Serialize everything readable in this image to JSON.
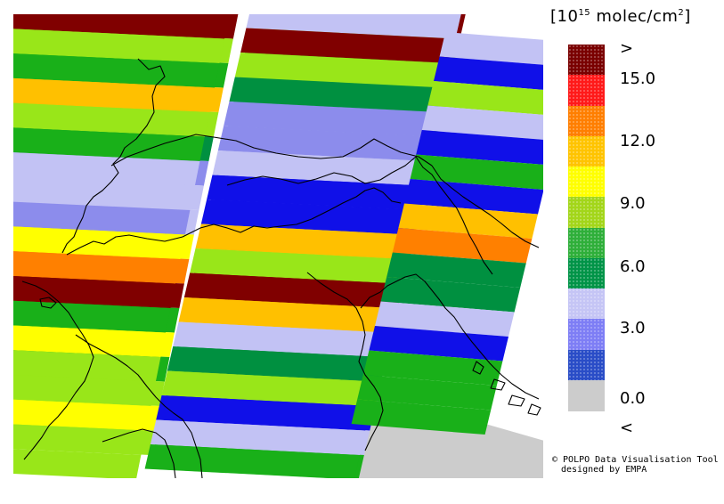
{
  "legend": {
    "title_prefix": "[10",
    "title_exponent": "15",
    "title_suffix": " molec/cm",
    "title_squared": "2",
    "title_close": "]",
    "colors": [
      "#7a0000",
      "#ff1a1a",
      "#ff7f00",
      "#ffc400",
      "#ffff00",
      "#a3d61a",
      "#2faf3a",
      "#009448",
      "#c5c5f5",
      "#7e7ef5",
      "#2a4dc7",
      "#cccccc"
    ],
    "labels": [
      ">",
      "15.0",
      "12.0",
      "9.0",
      "6.0",
      "3.0",
      "0.0",
      "<"
    ]
  },
  "credit": {
    "line1": "© POLPO Data Visualisation Tool",
    "line2": "designed by EMPA"
  },
  "map": {
    "palette": {
      "maroon": "#800000",
      "orange": "#ff8000",
      "amber": "#ffc000",
      "yellow": "#ffff00",
      "lime": "#99e619",
      "green": "#19b019",
      "dkgreen": "#009040",
      "ltblue": "#c2c2f4",
      "midblue": "#8c8cec",
      "blue": "#1010e8",
      "grey": "#cccccc"
    },
    "swaths": [
      [
        "maroon",
        "lime",
        "green",
        "amber",
        "lime",
        "dkgreen",
        "midblue",
        "ltblue",
        "ltblue",
        "yellow",
        "orange",
        "maroon",
        "green",
        "yellow",
        "green",
        "lime",
        "yellow",
        "lime"
      ],
      [
        "maroon",
        "lime",
        "green",
        "amber",
        "lime",
        "green",
        "ltblue",
        "ltblue",
        "midblue",
        "yellow",
        "orange",
        "maroon",
        "green",
        "yellow",
        "lime",
        "lime",
        "yellow",
        "lime",
        "lime"
      ],
      [
        "maroon",
        "lime",
        "green",
        "lime",
        "dkgreen",
        "midblue",
        "ltblue",
        "blue",
        "blue",
        "amber",
        "lime",
        "maroon",
        "amber",
        "ltblue",
        "dkgreen",
        "lime",
        "blue",
        "ltblue",
        "green"
      ],
      [
        "ltblue",
        "maroon",
        "lime",
        "dkgreen",
        "midblue",
        "midblue",
        "ltblue",
        "blue",
        "blue",
        "amber",
        "lime",
        "maroon",
        "amber",
        "ltblue",
        "dkgreen",
        "lime",
        "blue",
        "ltblue",
        "green"
      ],
      [
        "ltblue",
        "blue",
        "lime",
        "ltblue",
        "blue",
        "green",
        "blue",
        "amber",
        "orange",
        "dkgreen",
        "dkgreen",
        "ltblue",
        "blue",
        "green",
        "green",
        "green"
      ]
    ]
  }
}
